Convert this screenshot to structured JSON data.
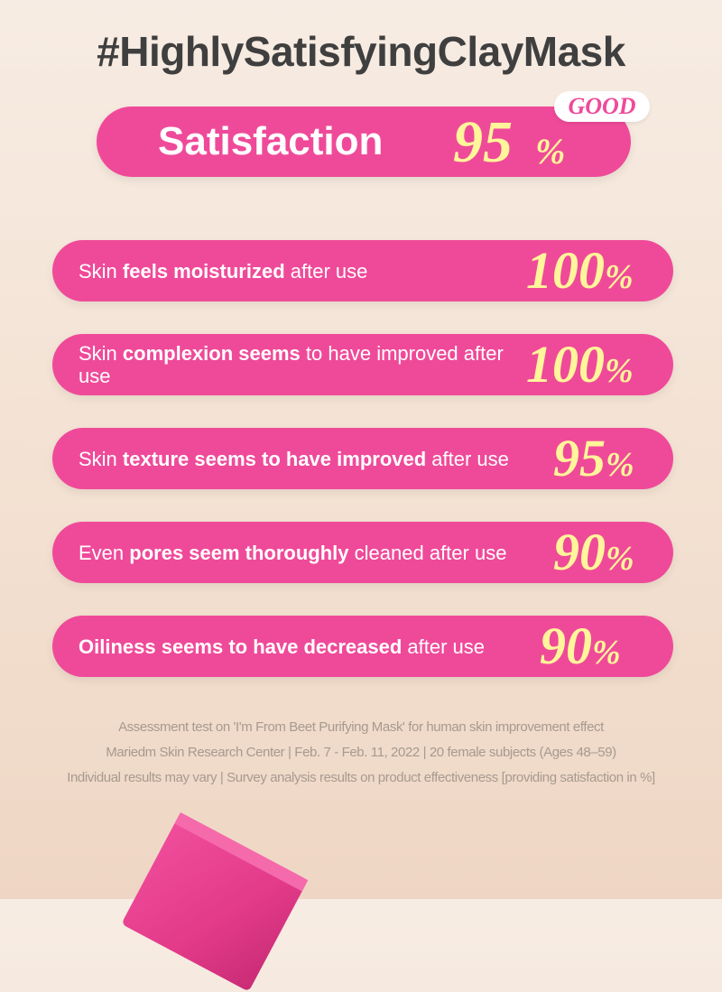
{
  "headline": "#HighlySatisfyingClayMask",
  "hero": {
    "label": "Satisfaction",
    "value": "95",
    "unit": "%",
    "badge": "GOOD"
  },
  "rows": [
    {
      "parts": [
        {
          "text": "Skin ",
          "bold": false
        },
        {
          "text": "feels moisturized",
          "bold": true
        },
        {
          "text": " after use",
          "bold": false
        }
      ],
      "value": "100",
      "unit": "%"
    },
    {
      "parts": [
        {
          "text": "Skin ",
          "bold": false
        },
        {
          "text": "complexion seems",
          "bold": true
        },
        {
          "text": " to have improved after use",
          "bold": false
        }
      ],
      "value": "100",
      "unit": "%"
    },
    {
      "parts": [
        {
          "text": "Skin ",
          "bold": false
        },
        {
          "text": "texture seems to have improved",
          "bold": true
        },
        {
          "text": " after use",
          "bold": false
        }
      ],
      "value": "95",
      "unit": "%"
    },
    {
      "parts": [
        {
          "text": "Even ",
          "bold": false
        },
        {
          "text": "pores seem thoroughly",
          "bold": true
        },
        {
          "text": " cleaned after use",
          "bold": false
        }
      ],
      "value": "90",
      "unit": "%"
    },
    {
      "parts": [
        {
          "text": "Oiliness seems to have decreased",
          "bold": true
        },
        {
          "text": " after use",
          "bold": false
        }
      ],
      "value": "90",
      "unit": "%"
    }
  ],
  "footnotes": [
    "Assessment test on 'I'm From Beet Purifying Mask' for human skin improvement effect",
    "Mariedm Skin Research Center  |  Feb. 7 - Feb. 11, 2022  |  20 female subjects (Ages 48–59)",
    "Individual results may vary  |  Survey analysis results on product effectiveness [providing satisfaction in %]"
  ],
  "colors": {
    "pink": "#ef4a99",
    "yellow": "#fff59a",
    "heading": "#3f3f3f",
    "note": "#a79a90"
  }
}
